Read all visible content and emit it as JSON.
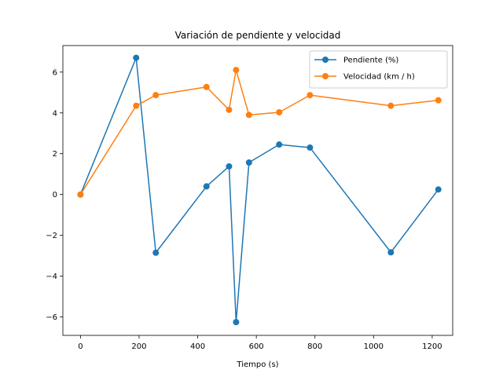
{
  "chart_data": {
    "type": "line",
    "title": "Variación de pendiente y velocidad",
    "xlabel": "Tiempo (s)",
    "ylabel": "",
    "xlim": [
      -60,
      1270
    ],
    "ylim": [
      -6.9,
      7.3
    ],
    "xticks": [
      0,
      200,
      400,
      600,
      800,
      1000,
      1200
    ],
    "yticks": [
      -6,
      -4,
      -2,
      0,
      2,
      4,
      6
    ],
    "xtick_labels": [
      "0",
      "200",
      "400",
      "600",
      "800",
      "1000",
      "1200"
    ],
    "ytick_labels": [
      "−6",
      "−4",
      "−2",
      "0",
      "2",
      "4",
      "6"
    ],
    "grid": false,
    "legend_position": "top-right",
    "series": [
      {
        "name": "Pendiente (%)",
        "color": "#1f77b4",
        "x": [
          0,
          190,
          257,
          430,
          507,
          531,
          575,
          678,
          783,
          1059,
          1221
        ],
        "y": [
          0.0,
          6.7,
          -2.85,
          0.4,
          1.38,
          -6.25,
          1.57,
          2.45,
          2.3,
          -2.83,
          0.25
        ]
      },
      {
        "name": "Velocidad (km / h)",
        "color": "#ff7f0e",
        "x": [
          0,
          190,
          257,
          430,
          507,
          531,
          575,
          678,
          783,
          1059,
          1221
        ],
        "y": [
          0.0,
          4.35,
          4.87,
          5.27,
          4.15,
          6.1,
          3.9,
          4.03,
          4.87,
          4.35,
          4.62
        ]
      }
    ]
  }
}
